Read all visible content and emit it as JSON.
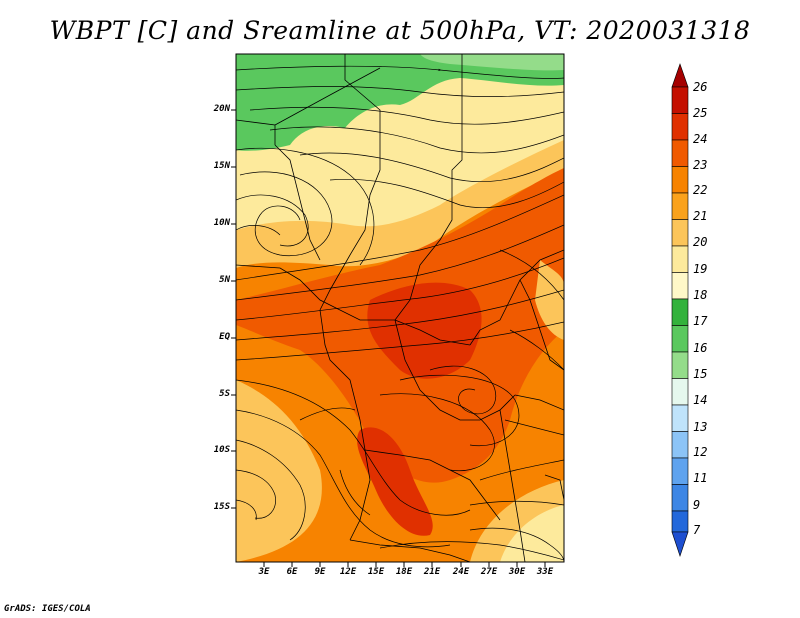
{
  "title": "WBPT [C] and Sreamline at 500hPa, VT: 2020031318",
  "footer": "GrADS: IGES/COLA",
  "y_axis": [
    "20N",
    "15N",
    "10N",
    "5N",
    "EQ",
    "5S",
    "10S",
    "15S"
  ],
  "x_axis": [
    "3E",
    "6E",
    "9E",
    "12E",
    "15E",
    "18E",
    "21E",
    "24E",
    "27E",
    "30E",
    "33E"
  ],
  "colorbar": {
    "labels": [
      "26",
      "25",
      "24",
      "23",
      "22",
      "21",
      "20",
      "19",
      "18",
      "17",
      "16",
      "15",
      "14",
      "13",
      "12",
      "11",
      "9",
      "7"
    ],
    "colors": [
      "#a50000",
      "#c41000",
      "#e03000",
      "#f05a00",
      "#f78300",
      "#faa21c",
      "#fcc55a",
      "#fdea9c",
      "#33b23c",
      "#5ac85e",
      "#94dc8a",
      "#e6f8ee",
      "#bfe3fb",
      "#8cc4f7",
      "#5fa3ef",
      "#3d86e5",
      "#2368db",
      "#1e4fd0"
    ]
  },
  "map_colors": {
    "green": "#5ac85e",
    "light_green": "#94dc8a",
    "pale": "#fdea9c",
    "light_orange": "#fcc55a",
    "orange": "#f78300",
    "dark_orange": "#f05a00",
    "red_orange": "#e03000"
  }
}
